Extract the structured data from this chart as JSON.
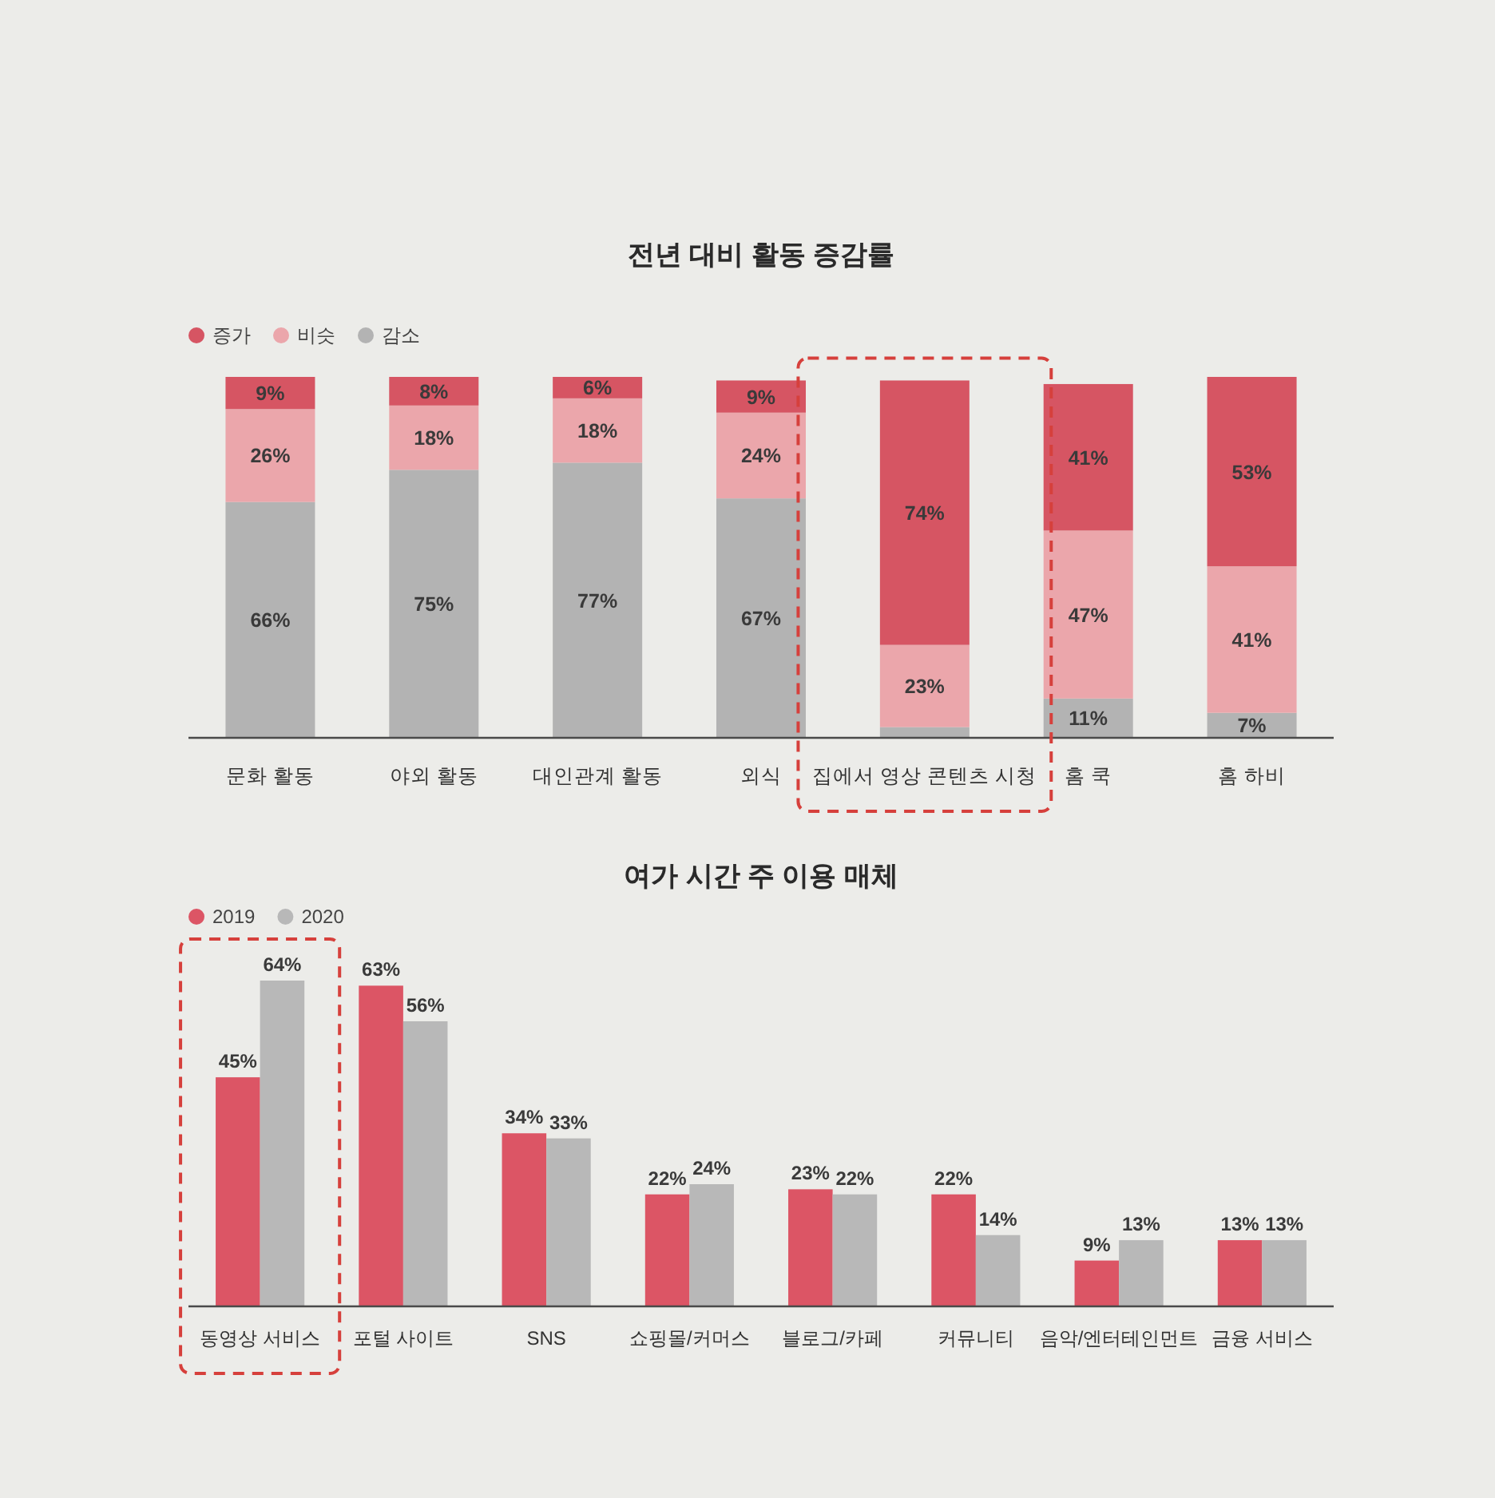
{
  "chart_data": [
    {
      "type": "bar",
      "title": "전년 대비 활동 증감률",
      "stacked": true,
      "legend": "top left",
      "categories": [
        "문화 활동",
        "야외 활동",
        "대인관계 활동",
        "외식",
        "집에서 영상 콘텐츠 시청",
        "홈 쿡",
        "홈 하비"
      ],
      "series": [
        {
          "name": "감소",
          "color": "#b3b3b3",
          "values": [
            66,
            75,
            77,
            67,
            3,
            11,
            7
          ],
          "value_labels": [
            "66%",
            "75%",
            "77%",
            "67%",
            null,
            "11%",
            "7%"
          ]
        },
        {
          "name": "비슷",
          "color": "#eba6ab",
          "values": [
            26,
            18,
            18,
            24,
            23,
            47,
            41
          ],
          "value_labels": [
            "26%",
            "18%",
            "18%",
            "24%",
            "23%",
            "47%",
            "41%"
          ]
        },
        {
          "name": "증가",
          "color": "#d65563",
          "values": [
            9,
            8,
            6,
            9,
            74,
            41,
            53
          ],
          "value_labels": [
            "9%",
            "8%",
            "6%",
            "9%",
            "74%",
            "41%",
            "53%"
          ]
        }
      ]
    },
    {
      "type": "bar",
      "title": "여가 시간 주 이용 매체",
      "legend": "top left",
      "categories": [
        "동영상 서비스",
        "포털 사이트",
        "SNS",
        "쇼핑몰/커머스",
        "블로그/카페",
        "커뮤니티",
        "음악/엔터테인먼트",
        "금융 서비스"
      ],
      "series": [
        {
          "name": "2019",
          "color": "#dc5565",
          "values": [
            45,
            63,
            34,
            22,
            23,
            22,
            9,
            13
          ],
          "value_labels": [
            "45%",
            "63%",
            "34%",
            "22%",
            "23%",
            "22%",
            "9%",
            "13%"
          ]
        },
        {
          "name": "2020",
          "color": "#b8b8b8",
          "values": [
            64,
            56,
            33,
            24,
            22,
            14,
            13,
            13
          ],
          "value_labels": [
            "64%",
            "56%",
            "33%",
            "24%",
            "22%",
            "14%",
            "13%",
            "13%"
          ]
        }
      ]
    }
  ]
}
